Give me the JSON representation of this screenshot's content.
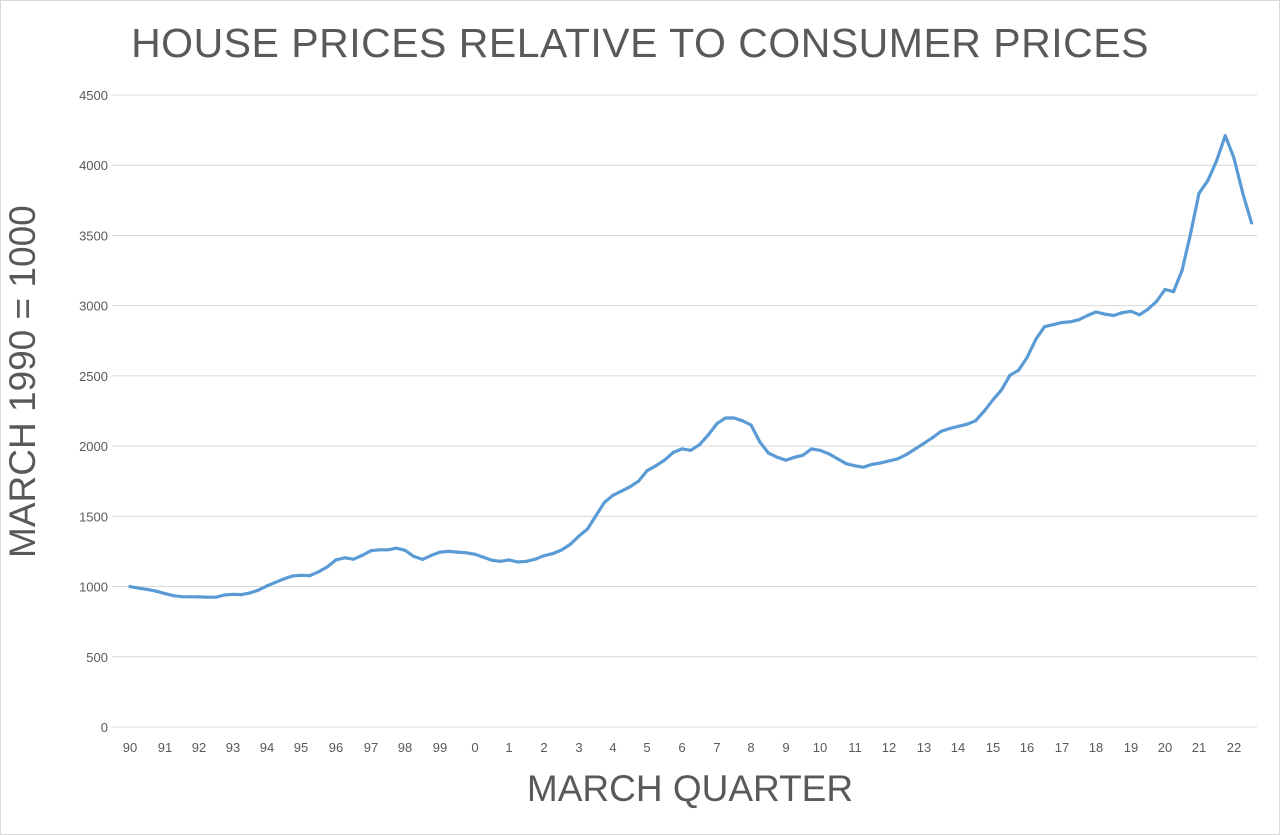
{
  "chart_data": {
    "type": "line",
    "title": "HOUSE PRICES RELATIVE TO CONSUMER PRICES",
    "xlabel": "MARCH QUARTER",
    "ylabel": "MARCH 1990 = 1000",
    "ylim": [
      0,
      4500
    ],
    "yticks": [
      0,
      500,
      1000,
      1500,
      2000,
      2500,
      3000,
      3500,
      4000,
      4500
    ],
    "xtick_labels": [
      "90",
      "91",
      "92",
      "93",
      "94",
      "95",
      "96",
      "97",
      "98",
      "99",
      "0",
      "1",
      "2",
      "3",
      "4",
      "5",
      "6",
      "7",
      "8",
      "9",
      "10",
      "11",
      "12",
      "13",
      "14",
      "15",
      "16",
      "17",
      "18",
      "19",
      "20",
      "21",
      "22"
    ],
    "grid": "horizontal",
    "legend": "none",
    "line_color": "#5b9bd5",
    "series": [
      {
        "x_start_label": "90",
        "points_per_year": 4,
        "values": [
          1000,
          988,
          980,
          967,
          950,
          935,
          928,
          927,
          926,
          924,
          924,
          940,
          945,
          943,
          955,
          975,
          1005,
          1030,
          1055,
          1075,
          1080,
          1078,
          1105,
          1140,
          1190,
          1205,
          1195,
          1222,
          1255,
          1262,
          1262,
          1273,
          1258,
          1215,
          1193,
          1222,
          1245,
          1250,
          1245,
          1240,
          1230,
          1208,
          1187,
          1180,
          1190,
          1175,
          1180,
          1195,
          1220,
          1235,
          1260,
          1300,
          1360,
          1410,
          1505,
          1600,
          1650,
          1680,
          1710,
          1750,
          1825,
          1860,
          1900,
          1955,
          1980,
          1970,
          2010,
          2080,
          2160,
          2200,
          2200,
          2180,
          2150,
          2030,
          1950,
          1920,
          1900,
          1920,
          1935,
          1980,
          1970,
          1945,
          1910,
          1875,
          1860,
          1850,
          1870,
          1880,
          1895,
          1910,
          1940,
          1980,
          2020,
          2060,
          2105,
          2125,
          2140,
          2155,
          2180,
          2250,
          2330,
          2400,
          2505,
          2540,
          2630,
          2760,
          2850,
          2865,
          2880,
          2885,
          2900,
          2930,
          2955,
          2940,
          2930,
          2950,
          2960,
          2935,
          2975,
          3030,
          3115,
          3100,
          3250,
          3510,
          3800,
          3890,
          4030,
          4210,
          4050,
          3800,
          3590
        ]
      }
    ]
  }
}
